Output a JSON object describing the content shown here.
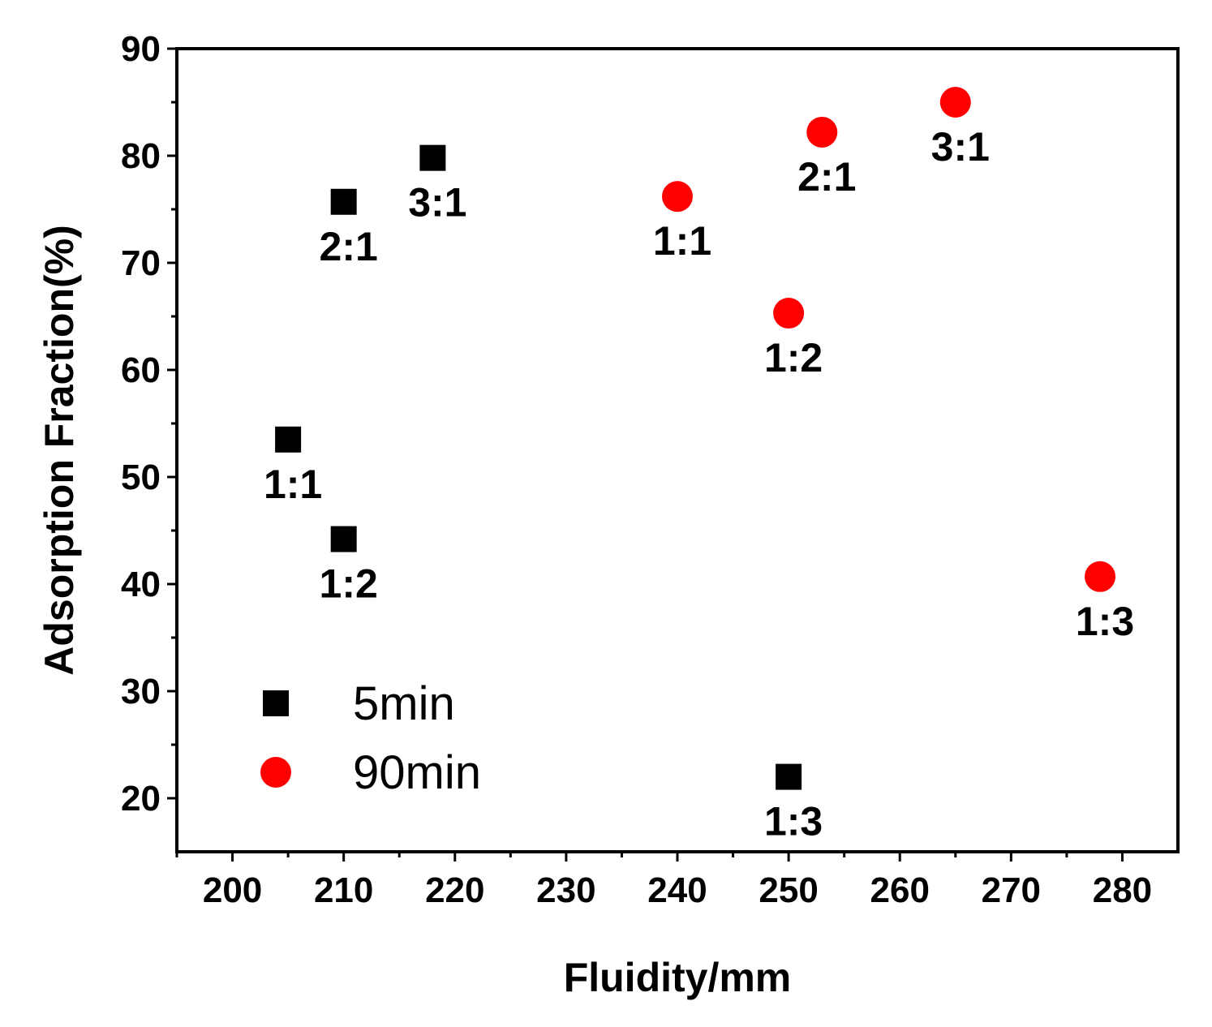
{
  "chart_data": {
    "type": "scatter",
    "title": "",
    "xlabel": "Fluidity/mm",
    "ylabel": "Adsorption Fraction(%)",
    "xlim": [
      195,
      285
    ],
    "ylim": [
      15,
      90
    ],
    "xticks": [
      200,
      210,
      220,
      230,
      240,
      250,
      260,
      270,
      280
    ],
    "yticks": [
      20,
      30,
      40,
      50,
      60,
      70,
      80,
      90
    ],
    "grid": false,
    "legend": "bottom-left",
    "series": [
      {
        "name": "5min",
        "marker": "square",
        "color": "#000000",
        "points": [
          {
            "x": 205,
            "y": 53.5,
            "label": "1:1"
          },
          {
            "x": 210,
            "y": 75.7,
            "label": "2:1"
          },
          {
            "x": 218,
            "y": 79.8,
            "label": "3:1"
          },
          {
            "x": 210,
            "y": 44.2,
            "label": "1:2"
          },
          {
            "x": 250,
            "y": 22.0,
            "label": "1:3"
          }
        ]
      },
      {
        "name": "90min",
        "marker": "circle",
        "color": "#ff0000",
        "points": [
          {
            "x": 240,
            "y": 76.2,
            "label": "1:1"
          },
          {
            "x": 253,
            "y": 82.2,
            "label": "2:1"
          },
          {
            "x": 265,
            "y": 85.0,
            "label": "3:1"
          },
          {
            "x": 250,
            "y": 65.3,
            "label": "1:2"
          },
          {
            "x": 278,
            "y": 40.7,
            "label": "1:3"
          }
        ]
      }
    ]
  }
}
